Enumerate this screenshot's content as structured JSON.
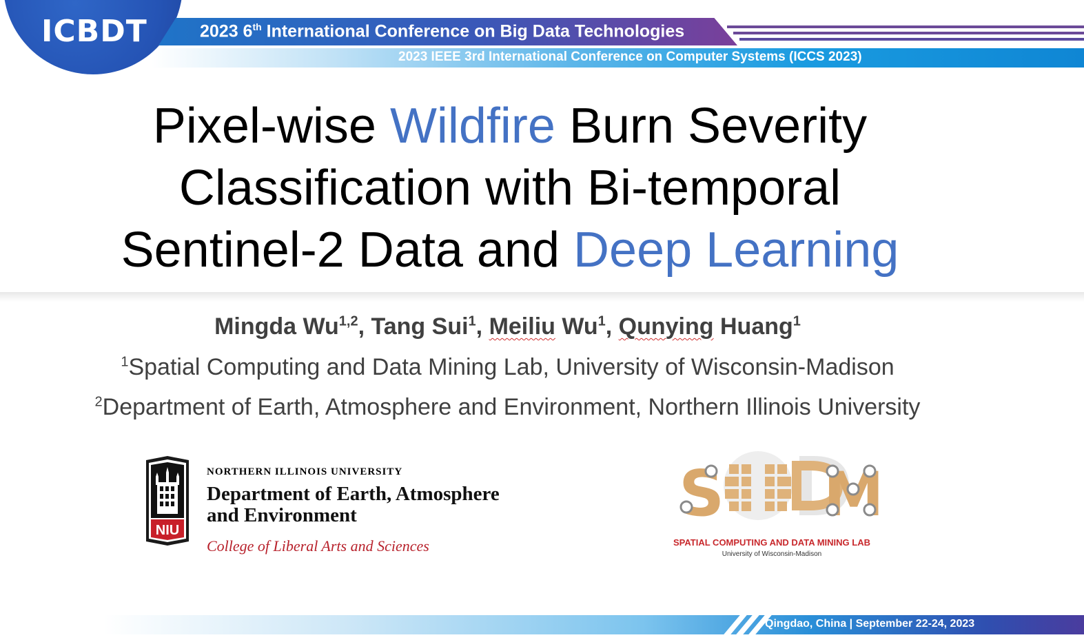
{
  "header": {
    "logo_text": "ICBDT",
    "conf_prefix": "2023 6",
    "conf_sup": "th",
    "conf_rest": " International Conference on Big Data Technologies",
    "second_line": "2023 IEEE 3rd International Conference on Computer Systems (ICCS 2023)"
  },
  "title": {
    "l1_a": "Pixel-wise ",
    "l1_b": "Wildfire",
    "l1_c": " Burn Severity",
    "l2": "Classification with Bi-temporal",
    "l3_a": "Sentinel-2 Data and ",
    "l3_b": "Deep Learning"
  },
  "authors": {
    "a1": "Mingda Wu",
    "a1_sup": "1,2",
    "sep1": ", Tang Sui",
    "a2_sup": "1",
    "sep2": ", ",
    "a3_first": "Meiliu",
    "a3_last": " Wu",
    "a3_sup": "1",
    "sep3": ", ",
    "a4_first": "Qunying",
    "a4_last": " Huang",
    "a4_sup": "1"
  },
  "affiliations": [
    {
      "sup": "1",
      "text": "Spatial Computing and Data Mining Lab, University of Wisconsin-Madison"
    },
    {
      "sup": "2",
      "text": "Department of Earth, Atmosphere and Environment, Northern Illinois University"
    }
  ],
  "niu": {
    "shield_text": "NIU",
    "small": "NORTHERN ILLINOIS UNIVERSITY",
    "dept_l1": "Department of Earth, Atmosphere",
    "dept_l2": "and Environment",
    "college": "College of Liberal Arts and Sciences"
  },
  "scdm": {
    "letter_s": "S",
    "letter_m": "M",
    "name": "SPATIAL COMPUTING AND DATA MINING LAB",
    "univ": "University of Wisconsin-Madison"
  },
  "footer": {
    "text": "Qingdao, China | September 22-24, 2023"
  },
  "colors": {
    "accent": "#4472c4",
    "niu_red": "#b8222c",
    "scdm_tan": "#d9a86c"
  }
}
